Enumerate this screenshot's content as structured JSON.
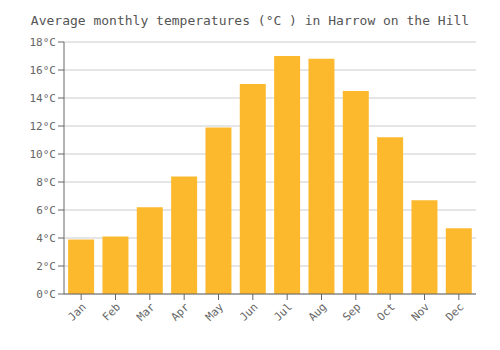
{
  "chart_data": {
    "type": "bar",
    "title": "Average monthly temperatures (°C ) in Harrow on the Hill",
    "categories": [
      "Jan",
      "Feb",
      "Mar",
      "Apr",
      "May",
      "Jun",
      "Jul",
      "Aug",
      "Sep",
      "Oct",
      "Nov",
      "Dec"
    ],
    "values": [
      3.9,
      4.1,
      6.2,
      8.4,
      11.9,
      15.0,
      17.0,
      16.8,
      14.5,
      11.2,
      6.7,
      4.7
    ],
    "color": "#FDB92E",
    "ylim": [
      0,
      18
    ],
    "yticks": [
      {
        "value": 0,
        "label": "0°C"
      },
      {
        "value": 2,
        "label": "2°C"
      },
      {
        "value": 4,
        "label": "4°C"
      },
      {
        "value": 6,
        "label": "6°C"
      },
      {
        "value": 8,
        "label": "8°C"
      },
      {
        "value": 10,
        "label": "10°C"
      },
      {
        "value": 12,
        "label": "12°C"
      },
      {
        "value": 14,
        "label": "14°C"
      },
      {
        "value": 16,
        "label": "16°C"
      },
      {
        "value": 18,
        "label": "18°C"
      }
    ],
    "grid": true
  }
}
